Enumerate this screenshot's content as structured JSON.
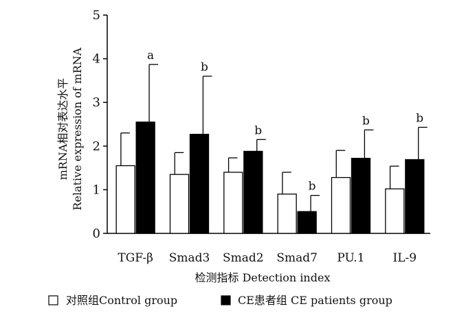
{
  "chart_data": {
    "type": "bar",
    "categories": [
      "TGF-β",
      "Smad3",
      "Smad2",
      "Smad7",
      "PU.1",
      "IL-9"
    ],
    "series": [
      {
        "name": "对照组Control group",
        "fill": "#ffffff",
        "values": [
          1.55,
          1.35,
          1.4,
          0.9,
          1.28,
          1.02
        ],
        "errors": [
          0.75,
          0.5,
          0.33,
          0.5,
          0.62,
          0.52
        ]
      },
      {
        "name": "CE患者组 CE patients group",
        "fill": "#000000",
        "values": [
          2.55,
          2.27,
          1.88,
          0.5,
          1.72,
          1.69
        ],
        "errors": [
          1.32,
          1.33,
          0.27,
          0.37,
          0.65,
          0.74
        ]
      }
    ],
    "significance": [
      "a",
      "b",
      "b",
      "b",
      "b",
      "b"
    ],
    "xlabel": "检测指标 Detection index",
    "ylabel_line1": "mRNA相对表达水平",
    "ylabel_line2": "Relative expression of mRNA",
    "ylim": [
      0,
      5
    ],
    "yticks": [
      0,
      1,
      2,
      3,
      4,
      5
    ],
    "grid": false,
    "legend_position": "bottom"
  }
}
